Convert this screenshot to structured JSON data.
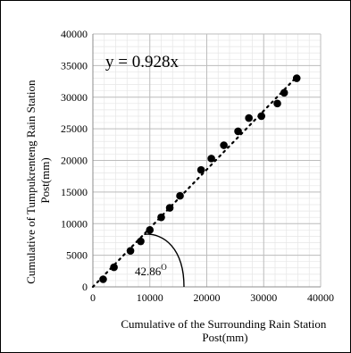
{
  "chart_data": {
    "type": "scatter",
    "xlabel": [
      "Cumulative of the Surrounding Rain Station",
      "Post(mm)"
    ],
    "ylabel": [
      "Cumulative of Tumpukrenteng Rain Station",
      "Post(mm)"
    ],
    "xlim": [
      0,
      40000
    ],
    "ylim": [
      0,
      40000
    ],
    "x_ticks": [
      0,
      10000,
      20000,
      30000,
      40000
    ],
    "y_ticks": [
      0,
      5000,
      10000,
      15000,
      20000,
      25000,
      30000,
      35000,
      40000
    ],
    "x_tick_labels": [
      "0",
      "10000",
      "20000",
      "30000",
      "40000"
    ],
    "y_tick_labels": [
      "0",
      "5000",
      "10000",
      "15000",
      "20000",
      "25000",
      "30000",
      "35000",
      "40000"
    ],
    "grid": true,
    "series": [
      {
        "x": [
          1800,
          3700,
          6600,
          8400,
          10000,
          12000,
          13500,
          15300,
          19000,
          20800,
          23000,
          25500,
          27400,
          29600,
          32400,
          33600,
          35800
        ],
        "y": [
          1200,
          3100,
          5700,
          7200,
          9000,
          11000,
          12500,
          14400,
          18500,
          20300,
          22400,
          24600,
          26700,
          27000,
          29000,
          30700,
          33000
        ],
        "color": "#000000"
      }
    ],
    "trendline": {
      "slope": 0.928,
      "x_range": [
        0,
        36000
      ],
      "style": "dotted",
      "color": "#000000"
    },
    "annotations": {
      "equation": "y = 0.928x",
      "angle_value": "42.86",
      "angle_unit": "O"
    }
  }
}
